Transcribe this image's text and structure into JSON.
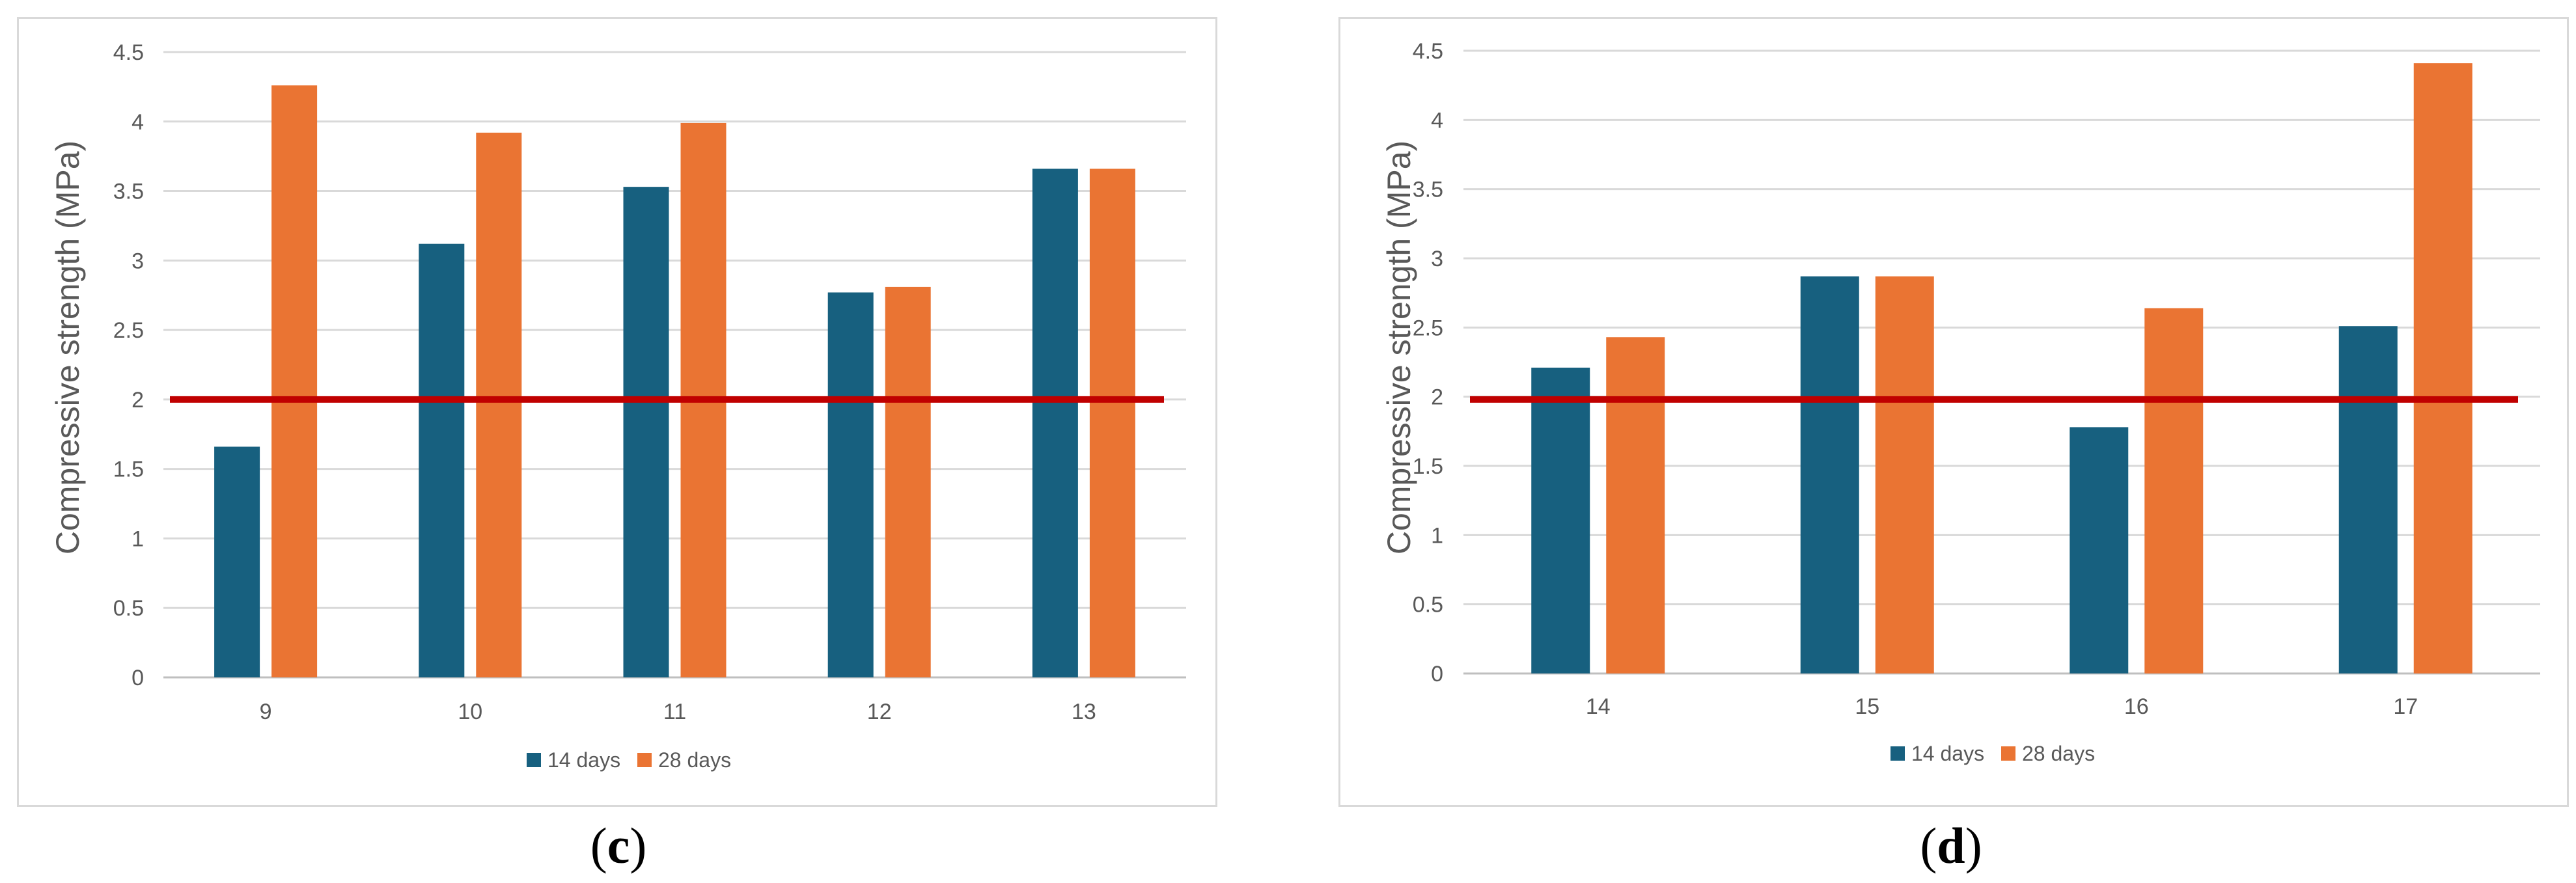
{
  "chart_data": [
    {
      "id": "c",
      "type": "bar",
      "categories": [
        "9",
        "10",
        "11",
        "12",
        "13"
      ],
      "series": [
        {
          "name": "14 days",
          "color": "#17607f",
          "values": [
            1.66,
            3.12,
            3.53,
            2.77,
            3.66
          ]
        },
        {
          "name": "28 days",
          "color": "#ea7433",
          "values": [
            4.26,
            3.92,
            3.99,
            2.81,
            3.66
          ]
        }
      ],
      "ylabel": "Compressive strength (MPa)",
      "xlabel": "",
      "ylim": [
        0,
        4.5
      ],
      "yticks": [
        "0",
        "0.5",
        "1",
        "1.5",
        "2",
        "2.5",
        "3",
        "3.5",
        "4",
        "4.5"
      ],
      "reference_line": {
        "value": 2.0,
        "color": "#c00000"
      },
      "legend_position": "bottom-center",
      "grid": true
    },
    {
      "id": "d",
      "type": "bar",
      "categories": [
        "14",
        "15",
        "16",
        "17"
      ],
      "series": [
        {
          "name": "14 days",
          "color": "#17607f",
          "values": [
            2.21,
            2.87,
            1.78,
            2.51
          ]
        },
        {
          "name": "28 days",
          "color": "#ea7433",
          "values": [
            2.43,
            2.87,
            2.64,
            4.41
          ]
        }
      ],
      "ylabel": "Compressive strength (MPa)",
      "xlabel": "",
      "ylim": [
        0,
        4.5
      ],
      "yticks": [
        "0",
        "0.5",
        "1",
        "1.5",
        "2",
        "2.5",
        "3",
        "3.5",
        "4",
        "4.5"
      ],
      "reference_line": {
        "value": 1.98,
        "color": "#c00000"
      },
      "legend_position": "bottom-center",
      "grid": true
    }
  ],
  "captions": {
    "c": {
      "open": "(",
      "letter": "c",
      "close": ")"
    },
    "d": {
      "open": "(",
      "letter": "d",
      "close": ")"
    }
  }
}
